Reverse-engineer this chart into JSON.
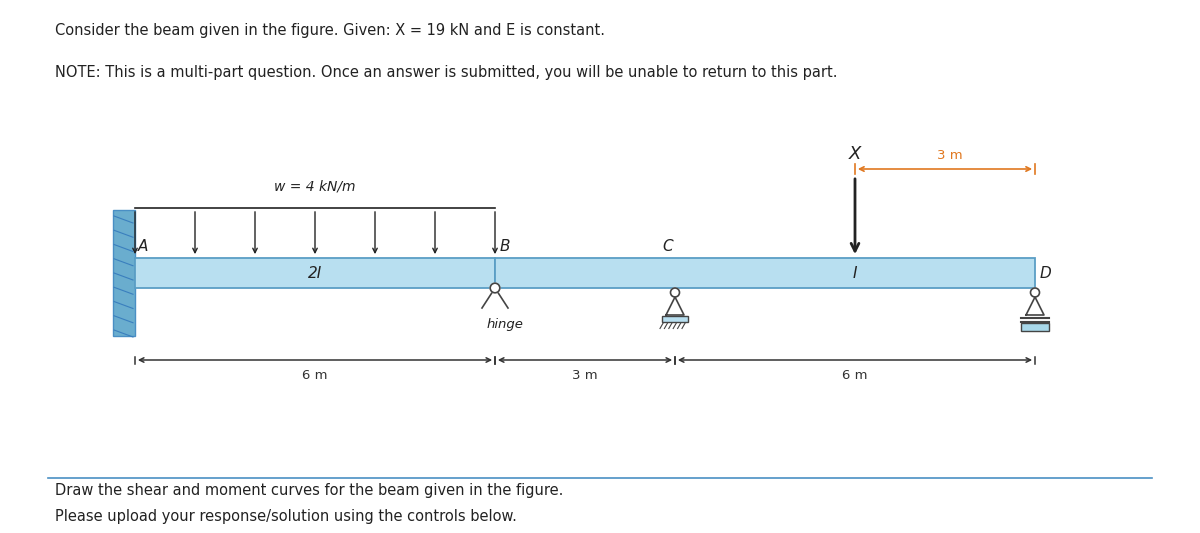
{
  "title_line1": "Consider the beam given in the figure. Given: X = 19 kN and E is constant.",
  "title_line2": "NOTE: This is a multi-part question. Once an answer is submitted, you will be unable to return to this part.",
  "footer_line1": "Draw the shear and moment curves for the beam given in the figure.",
  "footer_line2": "Please upload your response/solution using the controls below.",
  "beam_color": "#b8dff0",
  "beam_edge_color": "#5a9ec5",
  "wall_color": "#6aadce",
  "dim_color": "#333333",
  "text_color": "#222222",
  "orange_color": "#e07820",
  "background": "#ffffff",
  "border_color": "#4a90c4",
  "w_label": "w = 4 kN/m",
  "X_label": "X",
  "support_color": "#888888"
}
